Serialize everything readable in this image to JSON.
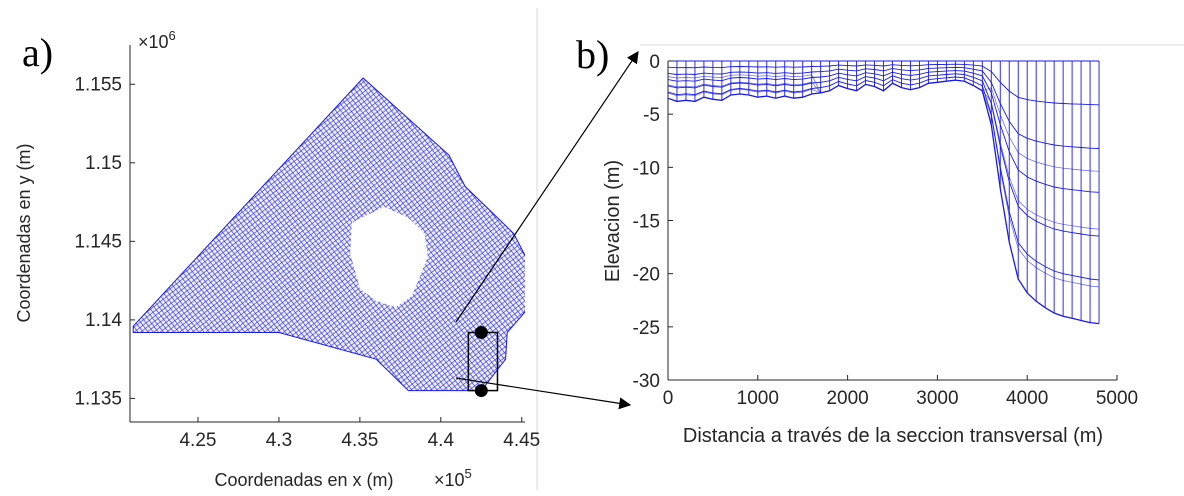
{
  "chart_data": [
    {
      "panel_label": "a)",
      "type": "scatter",
      "description_type": "mesh",
      "xlabel": "Coordenadas en x (m)",
      "ylabel": "Coordenadas en y (m)",
      "x_exponent": "×10",
      "x_exponent_power": "5",
      "y_exponent": "×10",
      "y_exponent_power": "6",
      "xlim": [
        4.208,
        4.452
      ],
      "ylim": [
        1.1335,
        1.1575
      ],
      "x_ticks": [
        4.25,
        4.3,
        4.35,
        4.4,
        4.45
      ],
      "x_tick_labels": [
        "4.25",
        "4.3",
        "4.35",
        "4.4",
        "4.45"
      ],
      "y_ticks": [
        1.135,
        1.14,
        1.145,
        1.15,
        1.155
      ],
      "y_tick_labels": [
        "1.135",
        "1.14",
        "1.145",
        "1.15",
        "1.155"
      ],
      "mesh_color": "#1a1ae6",
      "mesh_outline": [
        [
          4.21,
          1.1396
        ],
        [
          4.352,
          1.1554
        ],
        [
          4.405,
          1.1505
        ],
        [
          4.415,
          1.1485
        ],
        [
          4.43,
          1.147
        ],
        [
          4.445,
          1.1455
        ],
        [
          4.455,
          1.1435
        ],
        [
          4.452,
          1.1405
        ],
        [
          4.441,
          1.1392
        ],
        [
          4.44,
          1.1375
        ],
        [
          4.425,
          1.1355
        ],
        [
          4.38,
          1.1355
        ],
        [
          4.36,
          1.1375
        ],
        [
          4.3,
          1.1392
        ],
        [
          4.21,
          1.1392
        ]
      ],
      "hole_outline": [
        [
          4.345,
          1.1462
        ],
        [
          4.365,
          1.1472
        ],
        [
          4.38,
          1.1465
        ],
        [
          4.39,
          1.1455
        ],
        [
          4.392,
          1.144
        ],
        [
          4.382,
          1.1415
        ],
        [
          4.372,
          1.1408
        ],
        [
          4.36,
          1.1412
        ],
        [
          4.35,
          1.142
        ],
        [
          4.344,
          1.1442
        ]
      ],
      "transect_points": [
        [
          4.425,
          1.1392
        ],
        [
          4.425,
          1.1355
        ]
      ],
      "transect_box": [
        [
          4.417,
          1.1355
        ],
        [
          4.435,
          1.1392
        ]
      ]
    },
    {
      "panel_label": "b)",
      "type": "line",
      "description_type": "vertical mesh cross-section",
      "xlabel": "Distancia a través de la seccion transversal (m)",
      "ylabel": "Elevacion (m)",
      "xlim": [
        0,
        5000
      ],
      "ylim": [
        -30,
        0
      ],
      "x_ticks": [
        0,
        1000,
        2000,
        3000,
        4000,
        5000
      ],
      "x_tick_labels": [
        "0",
        "1000",
        "2000",
        "3000",
        "4000",
        "5000"
      ],
      "y_ticks": [
        0,
        -5,
        -10,
        -15,
        -20,
        -25,
        -30
      ],
      "y_tick_labels": [
        "0",
        "-5",
        "-10",
        "-15",
        "-20",
        "-25",
        "-30"
      ],
      "mesh_color": "#1a1ae6",
      "bottom_profile": {
        "x": [
          0,
          100,
          200,
          300,
          400,
          500,
          600,
          700,
          800,
          900,
          1000,
          1100,
          1200,
          1300,
          1400,
          1500,
          1600,
          1700,
          1800,
          1900,
          2000,
          2100,
          2200,
          2300,
          2400,
          2500,
          2600,
          2700,
          2800,
          2900,
          3000,
          3100,
          3200,
          3300,
          3400,
          3500,
          3600,
          3700,
          3800,
          3900,
          4000,
          4100,
          4200,
          4300,
          4400,
          4500,
          4600,
          4700,
          4800
        ],
        "y": [
          -3.5,
          -3.8,
          -3.7,
          -3.8,
          -3.4,
          -3.6,
          -3.7,
          -3.2,
          -3.1,
          -3.2,
          -3.4,
          -3.3,
          -3.5,
          -3.3,
          -3.5,
          -3.4,
          -3.1,
          -3.0,
          -2.8,
          -2.3,
          -2.6,
          -2.8,
          -2.2,
          -2.4,
          -2.8,
          -2.1,
          -2.5,
          -2.7,
          -2.5,
          -2.1,
          -2.0,
          -1.9,
          -1.8,
          -1.9,
          -2.3,
          -2.8,
          -6.0,
          -12.0,
          -17.0,
          -20.5,
          -21.8,
          -22.6,
          -23.2,
          -23.7,
          -24.0,
          -24.2,
          -24.4,
          -24.6,
          -24.7
        ]
      },
      "vertical_layers": 6
    }
  ]
}
